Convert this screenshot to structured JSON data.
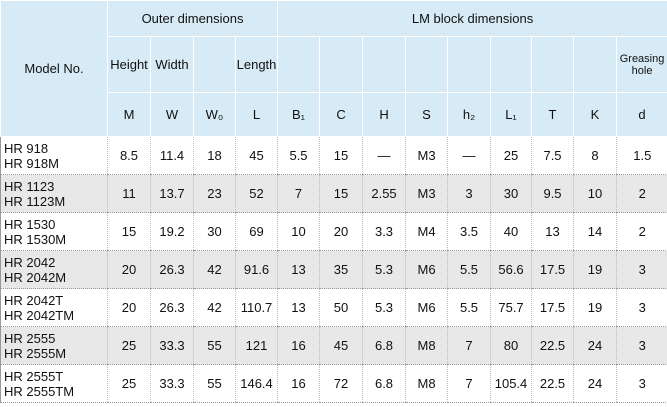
{
  "table": {
    "model_header": "Model No.",
    "groups": [
      "Outer dimensions",
      "LM block dimensions"
    ],
    "columns": [
      {
        "label": "Height",
        "symbol": "M"
      },
      {
        "label": "Width",
        "symbol": "W"
      },
      {
        "symbol": "W₀"
      },
      {
        "label": "Length",
        "symbol": "L"
      },
      {
        "symbol": "B₁"
      },
      {
        "symbol": "C"
      },
      {
        "symbol": "H"
      },
      {
        "symbol": "S"
      },
      {
        "symbol": "h₂"
      },
      {
        "symbol": "L₁"
      },
      {
        "symbol": "T"
      },
      {
        "symbol": "K"
      },
      {
        "label": "Greasing hole",
        "symbol": "d"
      }
    ],
    "rows": [
      {
        "model": [
          "HR 918",
          "HR 918M"
        ],
        "values": [
          8.5,
          11.4,
          18,
          45,
          5.5,
          15,
          "—",
          "M3",
          "—",
          25,
          7.5,
          8,
          1.5
        ]
      },
      {
        "model": [
          "HR 1123",
          "HR 1123M"
        ],
        "values": [
          11,
          13.7,
          23,
          52,
          7,
          15,
          2.55,
          "M3",
          3,
          30,
          9.5,
          10,
          2
        ]
      },
      {
        "model": [
          "HR 1530",
          "HR 1530M"
        ],
        "values": [
          15,
          19.2,
          30,
          69,
          10,
          20,
          3.3,
          "M4",
          3.5,
          40,
          13,
          14,
          2
        ]
      },
      {
        "model": [
          "HR 2042",
          "HR 2042M"
        ],
        "values": [
          20,
          26.3,
          42,
          91.6,
          13,
          35,
          5.3,
          "M6",
          5.5,
          56.6,
          17.5,
          19,
          3
        ]
      },
      {
        "model": [
          "HR 2042T",
          "HR 2042TM"
        ],
        "values": [
          20,
          26.3,
          42,
          110.7,
          13,
          50,
          5.3,
          "M6",
          5.5,
          75.7,
          17.5,
          19,
          3
        ]
      },
      {
        "model": [
          "HR 2555",
          "HR 2555M"
        ],
        "values": [
          25,
          33.3,
          55,
          121,
          16,
          45,
          6.8,
          "M8",
          7,
          80,
          22.5,
          24,
          3
        ]
      },
      {
        "model": [
          "HR 2555T",
          "HR 2555TM"
        ],
        "values": [
          25,
          33.3,
          55,
          146.4,
          16,
          72,
          6.8,
          "M8",
          7,
          105.4,
          22.5,
          24,
          3
        ]
      }
    ]
  }
}
